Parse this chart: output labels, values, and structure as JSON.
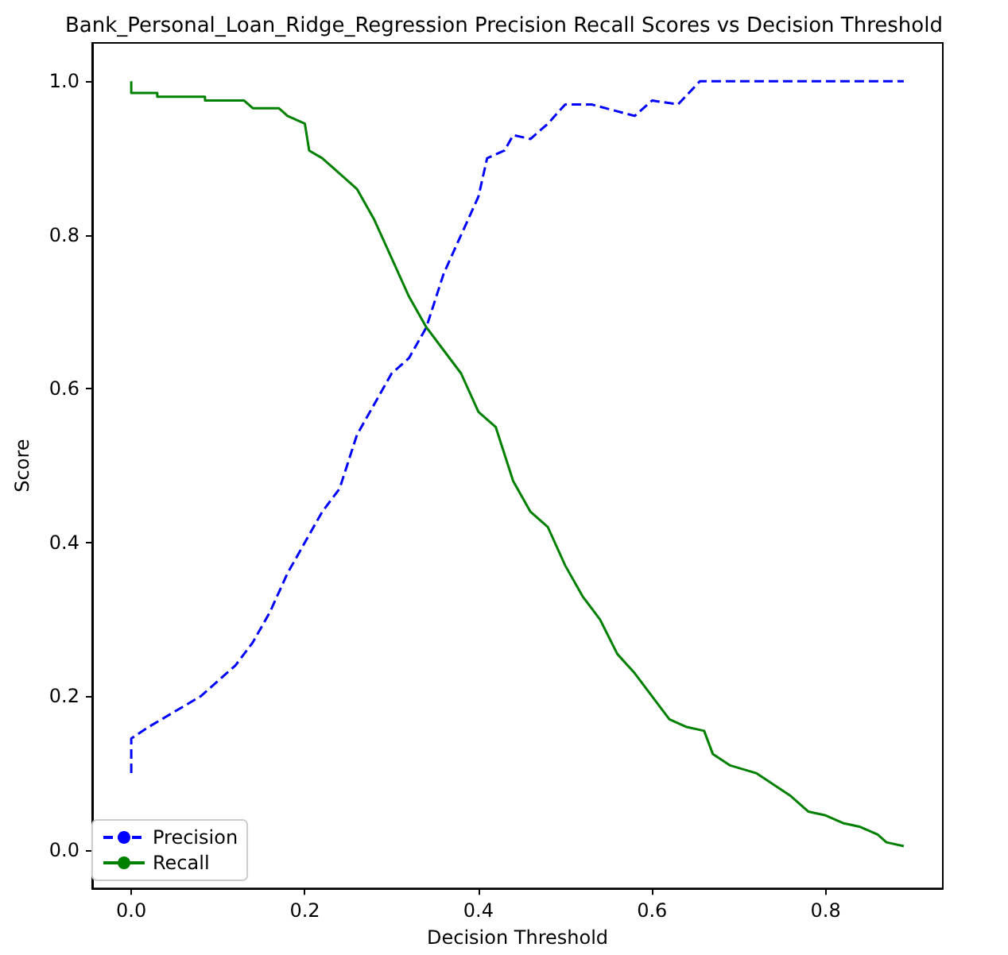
{
  "chart_data": {
    "type": "line",
    "title": "Bank_Personal_Loan_Ridge_Regression Precision Recall Scores vs Decision Threshold",
    "xlabel": "Decision Threshold",
    "ylabel": "Score",
    "xlim": [
      -0.045,
      0.935
    ],
    "ylim": [
      -0.05,
      1.05
    ],
    "xticks": [
      {
        "value": 0,
        "label": "0.0"
      },
      {
        "value": 0.2,
        "label": "0.2"
      },
      {
        "value": 0.4,
        "label": "0.4"
      },
      {
        "value": 0.6,
        "label": "0.6"
      },
      {
        "value": 0.8,
        "label": "0.8"
      }
    ],
    "yticks": [
      {
        "value": 0,
        "label": "0.0"
      },
      {
        "value": 0.2,
        "label": "0.2"
      },
      {
        "value": 0.4,
        "label": "0.4"
      },
      {
        "value": 0.6,
        "label": "0.6"
      },
      {
        "value": 0.8,
        "label": "0.8"
      },
      {
        "value": 1,
        "label": "1.0"
      }
    ],
    "grid": false,
    "legend": "bottom left",
    "marker": "none",
    "series": [
      {
        "name": "Precision",
        "color": "#0000ff",
        "line_style": "dashed",
        "x": [
          0,
          0,
          0.02,
          0.05,
          0.08,
          0.1,
          0.12,
          0.14,
          0.16,
          0.18,
          0.2,
          0.22,
          0.24,
          0.26,
          0.28,
          0.3,
          0.32,
          0.34,
          0.36,
          0.38,
          0.4,
          0.41,
          0.43,
          0.44,
          0.46,
          0.48,
          0.5,
          0.53,
          0.58,
          0.6,
          0.63,
          0.655,
          0.89
        ],
        "values": [
          0.1,
          0.145,
          0.16,
          0.18,
          0.2,
          0.22,
          0.24,
          0.27,
          0.31,
          0.36,
          0.4,
          0.44,
          0.47,
          0.54,
          0.58,
          0.62,
          0.64,
          0.68,
          0.75,
          0.8,
          0.85,
          0.9,
          0.91,
          0.93,
          0.925,
          0.945,
          0.97,
          0.97,
          0.955,
          0.975,
          0.97,
          1,
          1
        ]
      },
      {
        "name": "Recall",
        "color": "#008000",
        "line_style": "solid",
        "x": [
          0,
          0,
          0.03,
          0.03,
          0.085,
          0.085,
          0.13,
          0.14,
          0.17,
          0.18,
          0.2,
          0.205,
          0.22,
          0.24,
          0.26,
          0.28,
          0.3,
          0.32,
          0.34,
          0.36,
          0.38,
          0.4,
          0.42,
          0.44,
          0.46,
          0.48,
          0.5,
          0.52,
          0.54,
          0.56,
          0.58,
          0.6,
          0.62,
          0.64,
          0.66,
          0.67,
          0.69,
          0.72,
          0.74,
          0.76,
          0.78,
          0.8,
          0.82,
          0.84,
          0.86,
          0.87,
          0.89
        ],
        "values": [
          1,
          0.985,
          0.985,
          0.98,
          0.98,
          0.975,
          0.975,
          0.965,
          0.965,
          0.955,
          0.945,
          0.91,
          0.9,
          0.88,
          0.86,
          0.82,
          0.77,
          0.72,
          0.68,
          0.65,
          0.62,
          0.57,
          0.55,
          0.48,
          0.44,
          0.42,
          0.37,
          0.33,
          0.3,
          0.255,
          0.23,
          0.2,
          0.17,
          0.16,
          0.155,
          0.125,
          0.11,
          0.1,
          0.085,
          0.07,
          0.05,
          0.045,
          0.035,
          0.03,
          0.02,
          0.01,
          0.005
        ]
      }
    ]
  }
}
